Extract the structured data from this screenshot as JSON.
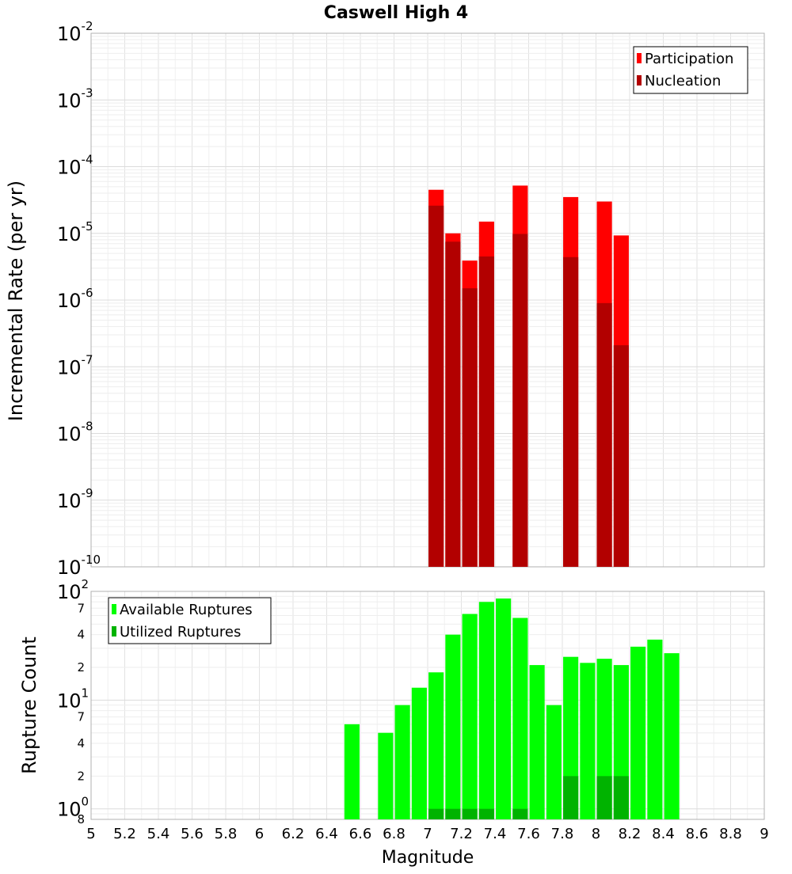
{
  "chart_data": [
    {
      "type": "bar",
      "title": "Caswell High 4",
      "ylabel": "Incremental Rate (per yr)",
      "xlabel": "",
      "yscale": "log",
      "xlim": [
        5,
        9
      ],
      "ylim": [
        1e-10,
        0.01
      ],
      "y_tick_bases": [
        "10",
        "10",
        "10",
        "10",
        "10",
        "10",
        "10",
        "10",
        "10"
      ],
      "y_tick_exps": [
        "-10",
        "-9",
        "-8",
        "-7",
        "-6",
        "-5",
        "-4",
        "-3",
        "-2"
      ],
      "grid": true,
      "legend_position": "top-right",
      "bar_width": 0.09,
      "series": [
        {
          "name": "Participation",
          "color": "#ff0000",
          "x": [
            7.05,
            7.15,
            7.25,
            7.35,
            7.55,
            7.85,
            8.05,
            8.15
          ],
          "values": [
            4.5e-05,
            1e-05,
            3.9e-06,
            1.5e-05,
            5.2e-05,
            3.5e-05,
            3e-05,
            9.3e-06
          ]
        },
        {
          "name": "Nucleation",
          "color": "#b20000",
          "x": [
            7.05,
            7.15,
            7.25,
            7.35,
            7.55,
            7.85,
            8.05,
            8.15
          ],
          "values": [
            2.6e-05,
            7.5e-06,
            1.5e-06,
            4.5e-06,
            9.8e-06,
            4.4e-06,
            9e-07,
            2.1e-07
          ]
        }
      ]
    },
    {
      "type": "bar",
      "title": "",
      "ylabel": "Rupture Count",
      "xlabel": "Magnitude",
      "yscale": "log",
      "xlim": [
        5,
        9
      ],
      "ylim": [
        0.8,
        100
      ],
      "x_ticks": [
        "5",
        "5.2",
        "5.4",
        "5.6",
        "5.8",
        "6",
        "6.2",
        "6.4",
        "6.6",
        "6.8",
        "7",
        "7.2",
        "7.4",
        "7.6",
        "7.8",
        "8",
        "8.2",
        "8.4",
        "8.6",
        "8.8",
        "9"
      ],
      "y_major": [
        {
          "base": "10",
          "exp": "2",
          "value": 100
        },
        {
          "base": "10",
          "exp": "1",
          "value": 10
        },
        {
          "base": "10",
          "exp": "0",
          "value": 1
        }
      ],
      "y_minor": [
        {
          "label": "7",
          "value": 70
        },
        {
          "label": "4",
          "value": 40
        },
        {
          "label": "2",
          "value": 20
        },
        {
          "label": "7",
          "value": 7
        },
        {
          "label": "4",
          "value": 4
        },
        {
          "label": "2",
          "value": 2
        },
        {
          "label": "8",
          "value": 0.8
        }
      ],
      "grid": true,
      "legend_position": "top-left",
      "bar_width": 0.09,
      "series": [
        {
          "name": "Available Ruptures",
          "color": "#00ff00",
          "x": [
            6.55,
            6.75,
            6.85,
            6.95,
            7.05,
            7.15,
            7.25,
            7.35,
            7.45,
            7.55,
            7.65,
            7.75,
            7.85,
            7.95,
            8.05,
            8.15,
            8.25,
            8.35,
            8.45
          ],
          "values": [
            6,
            5,
            9,
            13,
            18,
            40,
            62,
            80,
            86,
            57,
            21,
            9,
            25,
            22,
            24,
            21,
            31,
            36,
            27
          ]
        },
        {
          "name": "Utilized Ruptures",
          "color": "#00b300",
          "x": [
            7.05,
            7.15,
            7.25,
            7.35,
            7.55,
            7.85,
            8.05,
            8.15
          ],
          "values": [
            1,
            1,
            1,
            1,
            1,
            2,
            2,
            2
          ]
        }
      ]
    }
  ]
}
